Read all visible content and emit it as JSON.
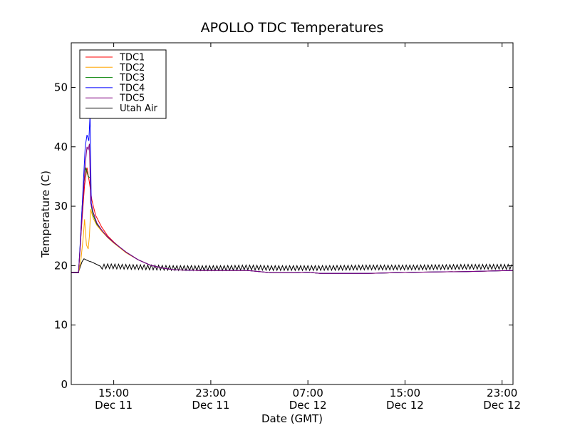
{
  "chart_data": {
    "type": "line",
    "title": "APOLLO TDC Temperatures",
    "xlabel": "Date (GMT)",
    "ylabel": "Temperature (C)",
    "ylim": [
      0,
      57.5
    ],
    "y_ticks": [
      0,
      10,
      20,
      30,
      40,
      50
    ],
    "xlim_hours": [
      11.5,
      47.9
    ],
    "x_ticks": [
      {
        "hour": 15,
        "time": "15:00",
        "date": "Dec 11"
      },
      {
        "hour": 23,
        "time": "23:00",
        "date": "Dec 11"
      },
      {
        "hour": 31,
        "time": "07:00",
        "date": "Dec 12"
      },
      {
        "hour": 39,
        "time": "15:00",
        "date": "Dec 12"
      },
      {
        "hour": 47,
        "time": "23:00",
        "date": "Dec 12"
      }
    ],
    "legend": {
      "location": "top-left"
    },
    "series": [
      {
        "name": "TDC1",
        "color": "#ff0000",
        "x": [
          11.5,
          12.1,
          12.2,
          12.4,
          12.6,
          12.8,
          13.0,
          13.2,
          13.5,
          14.0,
          14.5,
          15.0,
          16.0,
          17.0,
          18.0,
          19.0,
          20.0,
          22.0,
          26.0,
          28.0,
          30.0,
          31.0,
          32.0,
          34.0,
          36.0,
          38.0,
          40.0,
          44.0,
          47.9
        ],
        "values": [
          18.8,
          18.8,
          22.0,
          28.0,
          33.5,
          36.5,
          34.0,
          31.0,
          28.5,
          26.5,
          25.0,
          24.0,
          22.2,
          21.0,
          20.1,
          19.6,
          19.3,
          19.2,
          19.2,
          18.8,
          18.8,
          18.9,
          18.7,
          18.7,
          18.7,
          18.8,
          18.9,
          19.0,
          19.2
        ]
      },
      {
        "name": "TDC2",
        "color": "#ffa500",
        "x": [
          11.5,
          12.1,
          12.3,
          12.5,
          12.6,
          12.75,
          12.9,
          13.0,
          13.1,
          13.3,
          13.6,
          14.0,
          14.5,
          15.0,
          16.0,
          17.0,
          18.0,
          19.0,
          20.0,
          22.0,
          26.0,
          28.0,
          30.0,
          31.0,
          32.0,
          34.0,
          36.0,
          38.0,
          40.0,
          44.0,
          47.9
        ],
        "values": [
          18.8,
          18.8,
          21.0,
          25.0,
          27.8,
          23.5,
          22.8,
          25.0,
          29.5,
          28.0,
          26.8,
          25.8,
          24.7,
          23.8,
          22.2,
          21.0,
          20.1,
          19.6,
          19.3,
          19.2,
          19.2,
          18.8,
          18.8,
          18.9,
          18.7,
          18.7,
          18.7,
          18.8,
          18.9,
          19.0,
          19.2
        ]
      },
      {
        "name": "TDC3",
        "color": "#008000",
        "x": [
          11.5,
          12.1,
          12.25,
          12.4,
          12.55,
          12.7,
          12.9,
          13.05,
          13.15,
          13.3,
          13.6,
          14.0,
          14.5,
          15.0,
          16.0,
          17.0,
          18.0,
          19.0,
          20.0,
          22.0,
          26.0,
          28.0,
          30.0,
          31.0,
          32.0,
          34.0,
          36.0,
          38.0,
          40.0,
          44.0,
          47.9
        ],
        "values": [
          18.8,
          18.8,
          24.0,
          30.0,
          34.0,
          36.5,
          35.0,
          34.8,
          30.0,
          28.5,
          27.0,
          26.0,
          24.8,
          23.9,
          22.3,
          21.0,
          20.1,
          19.6,
          19.3,
          19.2,
          19.2,
          18.8,
          18.8,
          18.9,
          18.7,
          18.7,
          18.7,
          18.8,
          18.9,
          19.0,
          19.2
        ]
      },
      {
        "name": "TDC4",
        "color": "#0000ff",
        "x": [
          11.5,
          12.1,
          12.3,
          12.5,
          12.65,
          12.8,
          12.95,
          13.05,
          13.15,
          13.3,
          13.6,
          14.0,
          14.5,
          15.0,
          16.0,
          17.0,
          18.0,
          19.0,
          20.0,
          22.0,
          26.0,
          28.0,
          30.0,
          31.0,
          32.0,
          34.0,
          36.0,
          38.0,
          40.0,
          44.0,
          47.9
        ],
        "values": [
          18.8,
          18.8,
          26.0,
          34.0,
          40.0,
          42.0,
          41.0,
          45.5,
          30.5,
          29.0,
          27.2,
          26.0,
          24.8,
          23.9,
          22.3,
          21.0,
          20.1,
          19.6,
          19.3,
          19.2,
          19.2,
          18.8,
          18.8,
          18.9,
          18.7,
          18.7,
          18.7,
          18.8,
          18.9,
          19.0,
          19.2
        ]
      },
      {
        "name": "TDC5",
        "color": "#800080",
        "x": [
          11.5,
          12.1,
          12.3,
          12.5,
          12.65,
          12.8,
          12.9,
          13.0,
          13.1,
          13.3,
          13.6,
          14.0,
          14.5,
          15.0,
          16.0,
          17.0,
          18.0,
          19.0,
          20.0,
          22.0,
          26.0,
          28.0,
          30.0,
          31.0,
          32.0,
          34.0,
          36.0,
          38.0,
          40.0,
          44.0,
          47.9
        ],
        "values": [
          18.8,
          18.8,
          25.0,
          32.0,
          37.0,
          40.0,
          39.5,
          40.5,
          30.5,
          29.0,
          27.2,
          26.0,
          24.8,
          23.9,
          22.3,
          21.0,
          20.1,
          19.6,
          19.3,
          19.2,
          19.2,
          18.8,
          18.8,
          18.9,
          18.7,
          18.7,
          18.7,
          18.8,
          18.9,
          19.0,
          19.2
        ]
      },
      {
        "name": "Utah Air",
        "color": "#000000",
        "baseline": [
          [
            11.5,
            18.9
          ],
          [
            12.1,
            18.9
          ],
          [
            12.3,
            20.2
          ],
          [
            12.5,
            21.2
          ],
          [
            12.9,
            20.8
          ],
          [
            13.2,
            20.6
          ],
          [
            13.6,
            20.2
          ],
          [
            14.0,
            19.8
          ],
          [
            14.5,
            19.9
          ],
          [
            16.0,
            19.8
          ],
          [
            20.0,
            19.6
          ],
          [
            24.0,
            19.6
          ],
          [
            26.0,
            19.7
          ],
          [
            28.0,
            19.6
          ],
          [
            32.0,
            19.6
          ],
          [
            36.0,
            19.7
          ],
          [
            40.0,
            19.7
          ],
          [
            44.0,
            19.8
          ],
          [
            47.9,
            19.8
          ]
        ],
        "oscillation_amplitude": 0.4,
        "oscillation_period_hours": 0.3
      }
    ]
  }
}
